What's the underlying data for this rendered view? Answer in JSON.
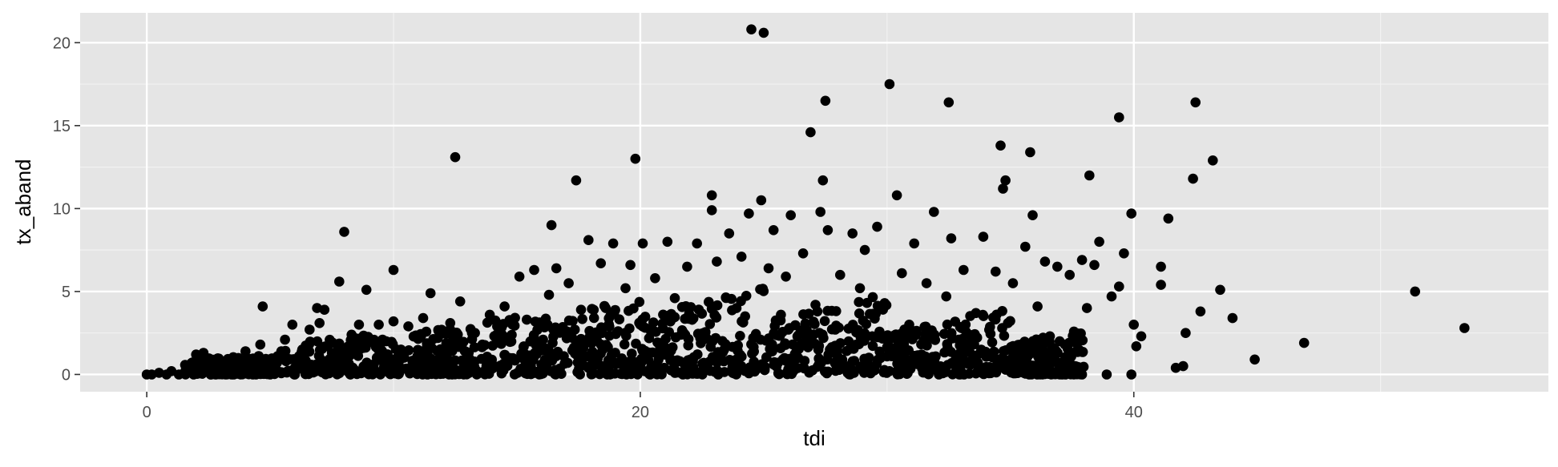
{
  "chart_data": {
    "type": "scatter",
    "title": "",
    "xlabel": "tdi",
    "ylabel": "tx_aband",
    "xlim": [
      -2.7,
      56.8
    ],
    "ylim": [
      -1.04,
      21.8
    ],
    "x_ticks": [
      0,
      20,
      40
    ],
    "y_ticks": [
      0,
      5,
      10,
      15,
      20
    ],
    "x_minor_ticks": [
      10,
      30,
      50
    ],
    "y_minor_ticks": [
      2.5,
      7.5,
      12.5,
      17.5
    ],
    "grid": true,
    "legend": "none",
    "colors": {
      "panel_background": "#e5e5e5",
      "grid_major": "#ffffff",
      "grid_minor": "#f2f2f2",
      "point": "#000000",
      "tick_text": "#4d4d4d",
      "axis_title_text": "#000000",
      "tick_mark": "#333333"
    },
    "points": [
      [
        0.0,
        0.0
      ],
      [
        0.2,
        0.0
      ],
      [
        0.5,
        0.1
      ],
      [
        0.8,
        0.0
      ],
      [
        1.0,
        0.2
      ],
      [
        1.3,
        0.0
      ],
      [
        1.6,
        0.4
      ],
      [
        1.9,
        0.0
      ],
      [
        2.0,
        1.2
      ],
      [
        2.3,
        1.3
      ],
      [
        2.6,
        0.0
      ],
      [
        2.9,
        0.5
      ],
      [
        3.2,
        0.0
      ],
      [
        3.5,
        0.8
      ],
      [
        3.8,
        0.2
      ],
      [
        4.0,
        1.4
      ],
      [
        4.3,
        0.0
      ],
      [
        4.6,
        1.8
      ],
      [
        4.7,
        4.1
      ],
      [
        5.0,
        0.6
      ],
      [
        5.3,
        1.1
      ],
      [
        5.6,
        2.1
      ],
      [
        5.9,
        3.0
      ],
      [
        6.0,
        0.0
      ],
      [
        6.3,
        1.5
      ],
      [
        6.6,
        2.7
      ],
      [
        6.9,
        4.0
      ],
      [
        7.0,
        3.1
      ],
      [
        7.2,
        3.9
      ],
      [
        7.5,
        1.0
      ],
      [
        7.8,
        5.6
      ],
      [
        8.0,
        8.6
      ],
      [
        8.3,
        2.4
      ],
      [
        8.5,
        1.2
      ],
      [
        8.6,
        3.0
      ],
      [
        8.9,
        5.1
      ],
      [
        9.1,
        0.5
      ],
      [
        9.4,
        3.0
      ],
      [
        9.7,
        2.0
      ],
      [
        10.0,
        3.2
      ],
      [
        10.0,
        6.3
      ],
      [
        10.3,
        1.5
      ],
      [
        10.6,
        2.9
      ],
      [
        10.9,
        0.4
      ],
      [
        11.2,
        3.4
      ],
      [
        11.5,
        4.9
      ],
      [
        11.8,
        2.2
      ],
      [
        12.0,
        1.0
      ],
      [
        12.3,
        3.1
      ],
      [
        12.5,
        13.1
      ],
      [
        12.7,
        4.4
      ],
      [
        13.0,
        0.2
      ],
      [
        13.3,
        2.5
      ],
      [
        13.6,
        1.8
      ],
      [
        13.9,
        3.6
      ],
      [
        14.2,
        2.9
      ],
      [
        14.5,
        4.1
      ],
      [
        14.8,
        0.9
      ],
      [
        15.1,
        5.9
      ],
      [
        15.4,
        3.3
      ],
      [
        15.7,
        6.3
      ],
      [
        16.0,
        2.0
      ],
      [
        16.3,
        4.8
      ],
      [
        16.4,
        9.0
      ],
      [
        16.6,
        6.4
      ],
      [
        16.9,
        1.1
      ],
      [
        17.1,
        5.5
      ],
      [
        17.4,
        11.7
      ],
      [
        17.6,
        3.9
      ],
      [
        17.9,
        8.1
      ],
      [
        18.1,
        0.5
      ],
      [
        18.4,
        6.7
      ],
      [
        18.6,
        4.0
      ],
      [
        18.9,
        7.9
      ],
      [
        19.1,
        2.6
      ],
      [
        19.4,
        5.2
      ],
      [
        19.6,
        6.6
      ],
      [
        19.8,
        13.0
      ],
      [
        20.0,
        3.0
      ],
      [
        20.1,
        7.9
      ],
      [
        20.4,
        0.0
      ],
      [
        20.6,
        5.8
      ],
      [
        20.9,
        1.9
      ],
      [
        21.1,
        8.0
      ],
      [
        21.4,
        4.6
      ],
      [
        21.6,
        0.8
      ],
      [
        21.9,
        6.5
      ],
      [
        22.1,
        3.3
      ],
      [
        22.3,
        7.9
      ],
      [
        22.6,
        2.2
      ],
      [
        22.9,
        10.8
      ],
      [
        22.9,
        9.9
      ],
      [
        23.1,
        6.8
      ],
      [
        23.4,
        1.5
      ],
      [
        23.6,
        8.5
      ],
      [
        23.9,
        4.0
      ],
      [
        24.1,
        7.1
      ],
      [
        24.4,
        9.7
      ],
      [
        24.5,
        20.8
      ],
      [
        24.7,
        0.3
      ],
      [
        24.9,
        10.5
      ],
      [
        25.0,
        20.6
      ],
      [
        25.2,
        6.4
      ],
      [
        25.4,
        8.7
      ],
      [
        25.7,
        3.6
      ],
      [
        25.9,
        5.9
      ],
      [
        26.1,
        9.6
      ],
      [
        26.4,
        1.0
      ],
      [
        26.6,
        7.3
      ],
      [
        26.9,
        14.6
      ],
      [
        27.1,
        4.2
      ],
      [
        27.3,
        9.8
      ],
      [
        27.4,
        11.7
      ],
      [
        27.5,
        16.5
      ],
      [
        27.6,
        8.7
      ],
      [
        27.9,
        2.7
      ],
      [
        28.1,
        6.0
      ],
      [
        28.4,
        0.1
      ],
      [
        28.6,
        8.5
      ],
      [
        28.9,
        5.2
      ],
      [
        29.1,
        7.5
      ],
      [
        29.4,
        2.3
      ],
      [
        29.6,
        8.9
      ],
      [
        29.9,
        4.3
      ],
      [
        30.1,
        0.2
      ],
      [
        30.1,
        17.5
      ],
      [
        30.4,
        10.8
      ],
      [
        30.6,
        6.1
      ],
      [
        30.9,
        3.0
      ],
      [
        31.1,
        7.9
      ],
      [
        31.4,
        1.2
      ],
      [
        31.6,
        5.5
      ],
      [
        31.9,
        9.8
      ],
      [
        32.1,
        0.0
      ],
      [
        32.4,
        4.7
      ],
      [
        32.5,
        16.4
      ],
      [
        32.6,
        8.2
      ],
      [
        32.9,
        2.1
      ],
      [
        33.1,
        6.3
      ],
      [
        33.4,
        0.6
      ],
      [
        33.6,
        3.7
      ],
      [
        33.9,
        8.3
      ],
      [
        34.1,
        1.1
      ],
      [
        34.4,
        6.2
      ],
      [
        34.6,
        13.8
      ],
      [
        34.7,
        11.2
      ],
      [
        34.8,
        11.7
      ],
      [
        34.9,
        3.1
      ],
      [
        35.1,
        5.5
      ],
      [
        35.4,
        1.8
      ],
      [
        35.6,
        7.7
      ],
      [
        35.8,
        13.4
      ],
      [
        35.9,
        9.6
      ],
      [
        36.1,
        4.1
      ],
      [
        36.4,
        6.8
      ],
      [
        36.6,
        2.3
      ],
      [
        36.9,
        6.5
      ],
      [
        37.1,
        0.0
      ],
      [
        37.4,
        6.0
      ],
      [
        37.9,
        0.0
      ],
      [
        37.9,
        6.9
      ],
      [
        38.1,
        4.0
      ],
      [
        38.2,
        12.0
      ],
      [
        38.4,
        6.6
      ],
      [
        38.6,
        8.0
      ],
      [
        38.9,
        0.0
      ],
      [
        39.1,
        4.7
      ],
      [
        39.4,
        15.5
      ],
      [
        39.4,
        5.3
      ],
      [
        39.6,
        7.3
      ],
      [
        39.9,
        9.7
      ],
      [
        39.9,
        0.0
      ],
      [
        40.0,
        3.0
      ],
      [
        40.1,
        1.7
      ],
      [
        40.3,
        2.3
      ],
      [
        41.1,
        6.5
      ],
      [
        41.1,
        5.4
      ],
      [
        41.4,
        9.4
      ],
      [
        41.7,
        0.4
      ],
      [
        42.0,
        0.5
      ],
      [
        42.1,
        2.5
      ],
      [
        42.4,
        11.8
      ],
      [
        42.5,
        16.4
      ],
      [
        42.7,
        3.8
      ],
      [
        43.2,
        12.9
      ],
      [
        43.5,
        5.1
      ],
      [
        44.0,
        3.4
      ],
      [
        44.9,
        0.9
      ],
      [
        46.9,
        1.9
      ],
      [
        51.4,
        5.0
      ],
      [
        53.4,
        2.8
      ]
    ],
    "cluster_bands": [
      [
        1.5,
        5.0,
        0.0,
        1.3
      ],
      [
        5.0,
        10.0,
        0.0,
        2.6
      ],
      [
        10.0,
        15.0,
        0.0,
        3.5
      ],
      [
        15.0,
        20.0,
        0.0,
        4.6
      ],
      [
        20.0,
        25.0,
        0.0,
        5.3
      ],
      [
        25.0,
        30.0,
        0.0,
        5.0
      ],
      [
        30.0,
        35.0,
        0.0,
        4.0
      ],
      [
        35.0,
        38.0,
        0.0,
        2.8
      ]
    ]
  }
}
